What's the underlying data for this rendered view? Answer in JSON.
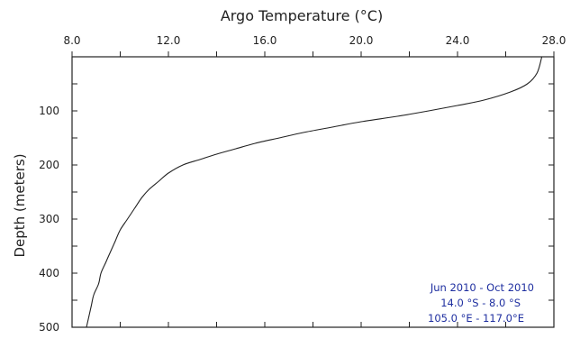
{
  "chart_data": {
    "type": "line",
    "title": "Argo Temperature (°C)",
    "xlabel": "Argo Temperature (°C)",
    "ylabel": "Depth (meters)",
    "x_axis_position": "top",
    "y_axis_inverted": true,
    "xlim": [
      8.0,
      28.0
    ],
    "ylim": [
      0,
      500
    ],
    "x_ticks": [
      8.0,
      10.0,
      12.0,
      14.0,
      16.0,
      18.0,
      20.0,
      22.0,
      24.0,
      26.0,
      28.0
    ],
    "x_tick_labels": [
      "8.0",
      "12.0",
      "16.0",
      "20.0",
      "24.0",
      "28.0"
    ],
    "x_tick_label_values": [
      8.0,
      12.0,
      16.0,
      20.0,
      24.0,
      28.0
    ],
    "y_ticks": [
      50,
      100,
      150,
      200,
      250,
      300,
      350,
      400,
      450,
      500
    ],
    "y_tick_labels": [
      "100",
      "200",
      "300",
      "400",
      "500"
    ],
    "y_tick_label_values": [
      100,
      200,
      300,
      400,
      500
    ],
    "grid": false,
    "legend": "none",
    "series": [
      {
        "name": "",
        "x": [
          27.5,
          27.3,
          26.9,
          26.2,
          25.1,
          24.0,
          22.8,
          21.5,
          20.0,
          18.8,
          17.6,
          16.6,
          15.6,
          14.8,
          14.0,
          13.3,
          12.6,
          12.0,
          11.6,
          11.2,
          10.9,
          10.6,
          10.3,
          10.0,
          9.8,
          9.6,
          9.4,
          9.2,
          9.1,
          8.9,
          8.8,
          8.6
        ],
        "y": [
          0,
          30,
          50,
          65,
          80,
          90,
          100,
          110,
          120,
          130,
          140,
          150,
          160,
          170,
          180,
          190,
          200,
          215,
          230,
          245,
          260,
          280,
          300,
          320,
          340,
          360,
          380,
          400,
          420,
          440,
          460,
          500
        ]
      }
    ],
    "annotations": [
      "Jun 2010 - Oct 2010",
      "14.0 °S  -  8.0 °S",
      "105.0 °E - 117.0°E"
    ],
    "annotation_color": "#1f2fa0",
    "line_color": "#222222"
  }
}
